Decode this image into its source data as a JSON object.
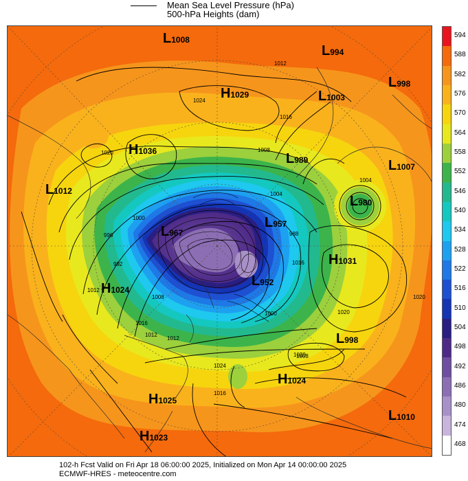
{
  "legend": {
    "mslp_label": "Mean Sea Level Pressure (hPa)",
    "heights_label": "500-hPa Heights (dam)"
  },
  "colorbar": {
    "levels": [
      "594",
      "588",
      "582",
      "576",
      "570",
      "564",
      "558",
      "552",
      "546",
      "540",
      "534",
      "528",
      "522",
      "516",
      "510",
      "504",
      "498",
      "492",
      "486",
      "480",
      "474",
      "468"
    ],
    "colors": [
      "#e8141e",
      "#f46a0c",
      "#f6951c",
      "#f9b21c",
      "#f6d50e",
      "#e8e81e",
      "#9cd03c",
      "#3cb44b",
      "#23b98f",
      "#14c8c0",
      "#1ec8ee",
      "#1ea0f0",
      "#1e78e6",
      "#1e50d2",
      "#1434b4",
      "#2a1e82",
      "#4e2a88",
      "#6e4ea0",
      "#8c6eb4",
      "#a890c8",
      "#c8b4dc",
      "#ffffff"
    ]
  },
  "footer": {
    "line1": "102-h Fcst Valid on Fri Apr 18 06:00:00 2025, Initialized on Mon Apr 14 00:00:00 2025",
    "line2": "ECMWF-HRES  - meteocentre.com"
  },
  "pressure_centers": [
    {
      "type": "L",
      "value": "1008"
    },
    {
      "type": "L",
      "value": "994"
    },
    {
      "type": "H",
      "value": "1029"
    },
    {
      "type": "L",
      "value": "998"
    },
    {
      "type": "L",
      "value": "1003"
    },
    {
      "type": "H",
      "value": "1036"
    },
    {
      "type": "L",
      "value": "989"
    },
    {
      "type": "L",
      "value": "1007"
    },
    {
      "type": "L",
      "value": "1012"
    },
    {
      "type": "L",
      "value": "980"
    },
    {
      "type": "L",
      "value": "967"
    },
    {
      "type": "L",
      "value": "957"
    },
    {
      "type": "H",
      "value": "1031"
    },
    {
      "type": "H",
      "value": "1024"
    },
    {
      "type": "L",
      "value": "952"
    },
    {
      "type": "L",
      "value": "998"
    },
    {
      "type": "H",
      "value": "1024"
    },
    {
      "type": "H",
      "value": "1025"
    },
    {
      "type": "L",
      "value": "1010"
    },
    {
      "type": "H",
      "value": "1023"
    }
  ],
  "isobar_labels": [
    "1012",
    "1024",
    "1020",
    "1008",
    "1016",
    "1004",
    "1000",
    "996",
    "992",
    "988",
    "1012",
    "1016",
    "1020",
    "1004",
    "1000",
    "1008",
    "1012",
    "1016",
    "1020",
    "1024",
    "1020",
    "1016",
    "1008",
    "1012"
  ]
}
